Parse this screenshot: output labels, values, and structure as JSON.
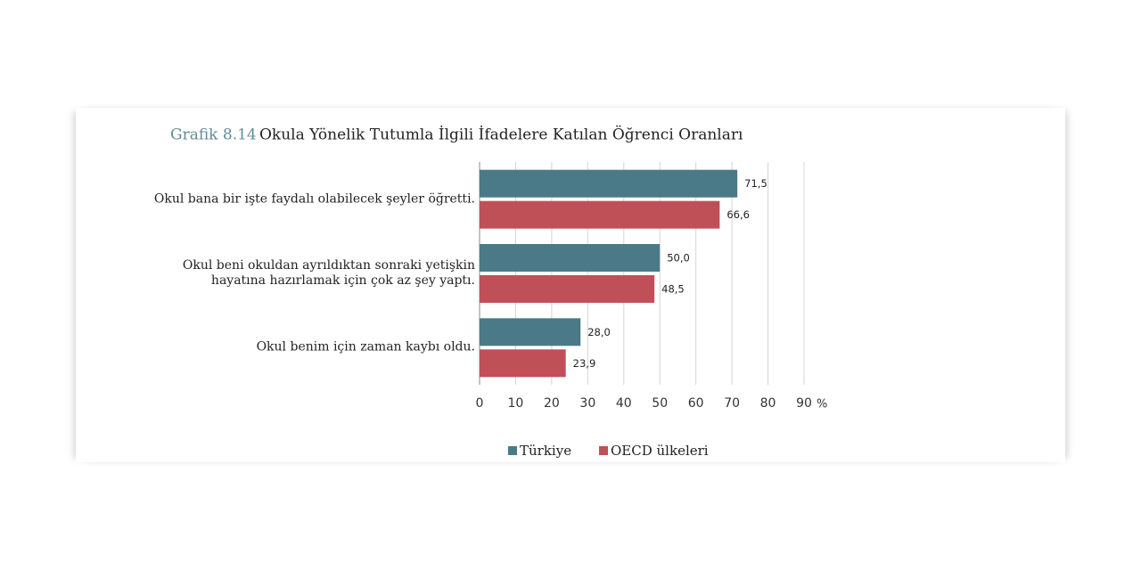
{
  "chart_data": {
    "type": "bar",
    "orientation": "horizontal",
    "figure_label": "Grafik 8.14",
    "title": "Okula Yönelik Tutumla İlgili İfadelere Katılan Öğrenci Oranları",
    "categories": [
      "Okul bana bir işte faydalı olabilecek şeyler öğretti.",
      "Okul beni okuldan ayrıldıktan sonraki yetişkin\nhayatına  hazırlamak için çok az şey yaptı.",
      "Okul benim için zaman kaybı oldu."
    ],
    "series": [
      {
        "name": "Türkiye",
        "color": "#4a7a87",
        "values": [
          71.5,
          50.0,
          28.0
        ],
        "value_labels": [
          "71,5",
          "50,0",
          "28,0"
        ]
      },
      {
        "name": "OECD ülkeleri",
        "color": "#c05058",
        "values": [
          66.6,
          48.5,
          23.9
        ],
        "value_labels": [
          "66,6",
          "48,5",
          "23,9"
        ]
      }
    ],
    "xlim": [
      0,
      90
    ],
    "xticks": [
      0,
      10,
      20,
      30,
      40,
      50,
      60,
      70,
      80,
      90
    ],
    "xlabel": "%",
    "grid": true,
    "legend": "bottom"
  }
}
